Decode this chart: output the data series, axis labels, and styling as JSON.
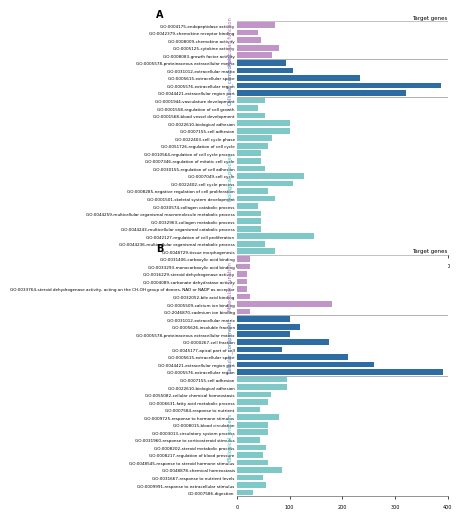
{
  "panel_A": {
    "title": "Target genes",
    "xlim": [
      0,
      60
    ],
    "xticks": [
      0,
      10,
      20,
      30,
      40,
      60
    ],
    "sections": {
      "Biological_process": {
        "color": "#7ec8c8",
        "label_color": "#4db8b8",
        "terms": [
          {
            "label": "GO:0048729-tissue morphogenesis",
            "value": 11
          },
          {
            "label": "GO:0044236-multicellular organismal metabolic process",
            "value": 8
          },
          {
            "label": "GO:0042127-regulation of cell proliferation",
            "value": 22
          },
          {
            "label": "GO:0044243-multicellular organismal catabolic process",
            "value": 7
          },
          {
            "label": "GO:0032963-collagen metabolic process",
            "value": 7
          },
          {
            "label": "GO:0044259-multicellular organismal macromolecule metabolic process",
            "value": 7
          },
          {
            "label": "GO:0030574-collagen catabolic process",
            "value": 6
          },
          {
            "label": "GO:0001501-skeletal system development",
            "value": 11
          },
          {
            "label": "GO:0008285-negative regulation of cell proliferation",
            "value": 9
          },
          {
            "label": "GO:0022402-cell cycle process",
            "value": 16
          },
          {
            "label": "GO:0007049-cell cycle",
            "value": 19
          },
          {
            "label": "GO:0030155-regulation of cell adhesion",
            "value": 8
          },
          {
            "label": "GO:0007346-regulation of mitotic cell cycle",
            "value": 7
          },
          {
            "label": "GO:0010564-regulation of cell cycle process",
            "value": 7
          },
          {
            "label": "GO:0051726-regulation of cell cycle",
            "value": 9
          },
          {
            "label": "GO:0022403-cell cycle phase",
            "value": 10
          },
          {
            "label": "GO:0007155-cell adhesion",
            "value": 15
          },
          {
            "label": "GO:0022610-biological adhesion",
            "value": 15
          },
          {
            "label": "GO:0001568-blood vessel development",
            "value": 8
          },
          {
            "label": "GO:0001558-regulation of cell growth",
            "value": 6
          },
          {
            "label": "GO:0001944-vasculature development",
            "value": 8
          }
        ]
      },
      "Cellular_component": {
        "color": "#2e6da4",
        "label_color": "#5577aa",
        "terms": [
          {
            "label": "GO:0044421-extracellular region part",
            "value": 48
          },
          {
            "label": "GO:0005576-extracellular region",
            "value": 58
          },
          {
            "label": "GO:0005615-extracellular space",
            "value": 35
          },
          {
            "label": "GO:0031012-extracellular matrix",
            "value": 16
          },
          {
            "label": "GO:0005578-proteinaceous extracellular matrix",
            "value": 14
          }
        ]
      },
      "Molecular_function": {
        "color": "#c195c8",
        "label_color": "#aa77bb",
        "terms": [
          {
            "label": "GO:0008083-growth factor activity",
            "value": 10
          },
          {
            "label": "GO:0005125-cytokine activity",
            "value": 12
          },
          {
            "label": "GO:0008009-chemokine activity",
            "value": 7
          },
          {
            "label": "GO:0042379-chemokine receptor binding",
            "value": 6
          },
          {
            "label": "GO:0004175-endopeptidase activity",
            "value": 11
          }
        ]
      }
    }
  },
  "panel_B": {
    "title": "Target genes",
    "xlim": [
      0,
      400
    ],
    "xticks": [
      0,
      100,
      200,
      300,
      400
    ],
    "sections": {
      "Biological_process": {
        "color": "#7ec8c8",
        "label_color": "#4db8b8",
        "terms": [
          {
            "label": "GO:0007586-digestion",
            "value": 30
          },
          {
            "label": "GO:0009991-response to extracellular stimulus",
            "value": 55
          },
          {
            "label": "GO:0031667-response to nutrient levels",
            "value": 50
          },
          {
            "label": "GO:0048878-chemical homeostasis",
            "value": 85
          },
          {
            "label": "GO:0048545-response to steroid hormone stimulus",
            "value": 60
          },
          {
            "label": "GO:0008217-regulation of blood pressure",
            "value": 50
          },
          {
            "label": "GO:0008202-steroid metabolic process",
            "value": 55
          },
          {
            "label": "GO:0031960-response to corticosteroid stimulus",
            "value": 45
          },
          {
            "label": "GO:0003013-circulatory system process",
            "value": 60
          },
          {
            "label": "GO:0008015-blood circulation",
            "value": 60
          },
          {
            "label": "GO:0009725-response to hormone stimulus",
            "value": 80
          },
          {
            "label": "GO:0007584-response to nutrient",
            "value": 45
          },
          {
            "label": "GO:0006631-fatty acid metabolic process",
            "value": 60
          },
          {
            "label": "GO:0055082-cellular chemical homeostasis",
            "value": 65
          },
          {
            "label": "GO:0022610-biological adhesion",
            "value": 95
          },
          {
            "label": "GO:0007155-cell adhesion",
            "value": 95
          }
        ]
      },
      "Cellular_component": {
        "color": "#2e6da4",
        "label_color": "#5577aa",
        "terms": [
          {
            "label": "GO:0005576-extracellular region",
            "value": 390
          },
          {
            "label": "GO:0044421-extracellular region part",
            "value": 260
          },
          {
            "label": "GO:0005615-extracellular space",
            "value": 210
          },
          {
            "label": "GO:0045177-apical part of cell",
            "value": 85
          },
          {
            "label": "GO:0000267-cell fraction",
            "value": 175
          },
          {
            "label": "GO:0005578-proteinaceous extracellular matrix",
            "value": 100
          },
          {
            "label": "GO:0005626-insoluble fraction",
            "value": 120
          },
          {
            "label": "GO:0031012-extracellular matrix",
            "value": 100
          }
        ]
      },
      "Molecular_function": {
        "color": "#c195c8",
        "label_color": "#aa77bb",
        "terms": [
          {
            "label": "GO:2046870-cadmium ion binding",
            "value": 25
          },
          {
            "label": "GO:0005509-calcium ion binding",
            "value": 180
          },
          {
            "label": "GO:0032052-bile acid binding",
            "value": 25
          },
          {
            "label": "GO:0033764-steroid dehydrogenase activity, acting on the CH-OH group of donors, NAD or NADP as acceptor",
            "value": 20
          },
          {
            "label": "GO:0004089-carbonate dehydratase activity",
            "value": 20
          },
          {
            "label": "GO:0016229-steroid dehydrogenase activity",
            "value": 20
          },
          {
            "label": "GO:0033293-monocarboxylic acid binding",
            "value": 25
          },
          {
            "label": "GO:0031406-carboxylic acid binding",
            "value": 25
          }
        ]
      }
    }
  },
  "bg_color": "#ffffff",
  "section_line_color": "#aaaaaa",
  "bar_height": 0.75,
  "label_fontsize": 3.0,
  "tick_fontsize": 3.5,
  "title_fontsize": 4.0,
  "section_label_fontsize": 3.8,
  "panel_label_fontsize": 7
}
